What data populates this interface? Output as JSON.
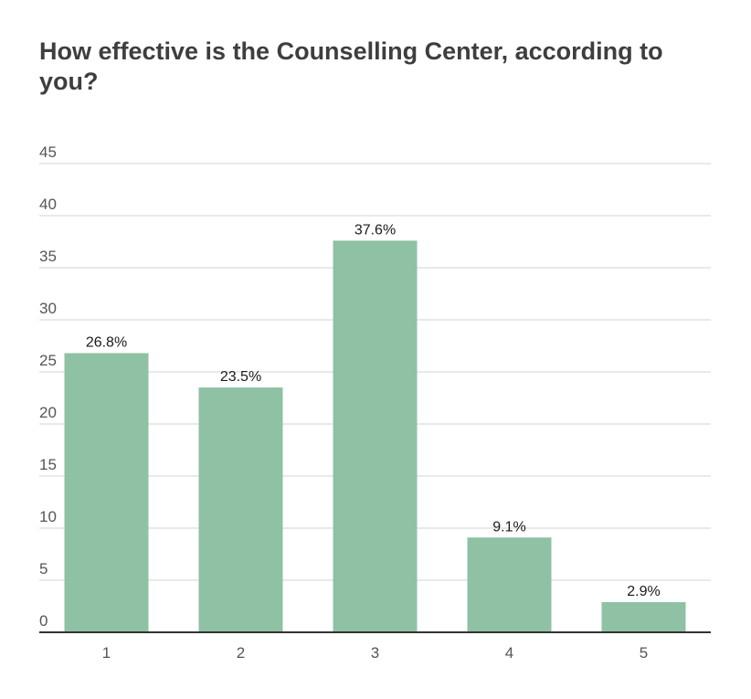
{
  "chart_data": {
    "type": "bar",
    "title": "How effective is the Counselling Center, according to you?",
    "xlabel": "",
    "ylabel": "",
    "categories": [
      "1",
      "2",
      "3",
      "4",
      "5"
    ],
    "values": [
      26.8,
      23.5,
      37.6,
      9.1,
      2.9
    ],
    "data_labels": [
      "26.8%",
      "23.5%",
      "37.6%",
      "9.1%",
      "2.9%"
    ],
    "ylim": [
      0,
      45
    ],
    "yticks": [
      "0",
      "5",
      "10",
      "15",
      "20",
      "25",
      "30",
      "35",
      "40",
      "45"
    ],
    "grid": true,
    "legend": "none",
    "bar_color": "#8fc1a4",
    "grid_color": "#dcdcdc",
    "axis_color": "#333333"
  }
}
